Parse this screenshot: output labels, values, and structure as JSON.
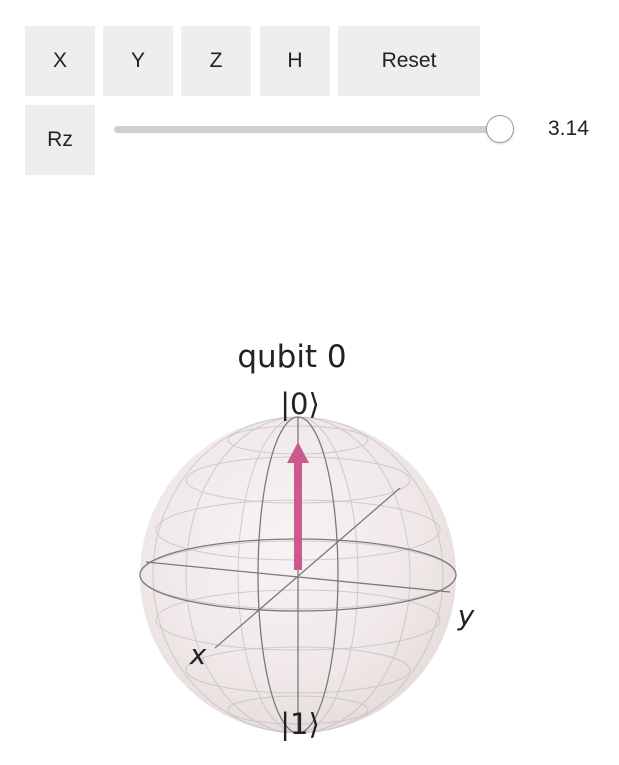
{
  "controls": {
    "buttons": {
      "x": "X",
      "y": "Y",
      "z": "Z",
      "h": "H",
      "reset": "Reset",
      "rz": "Rz"
    },
    "rz_slider": {
      "value_label": "3.14",
      "fraction": 1.0
    }
  },
  "bloch": {
    "title": "qubit 0",
    "labels": {
      "top": "|0⟩",
      "bottom": "|1⟩",
      "x_axis": "x",
      "y_axis": "y"
    },
    "state_vector_color": "#cc5a8f",
    "sphere_fill": "#f2eaea",
    "grid_color": "#888888"
  }
}
